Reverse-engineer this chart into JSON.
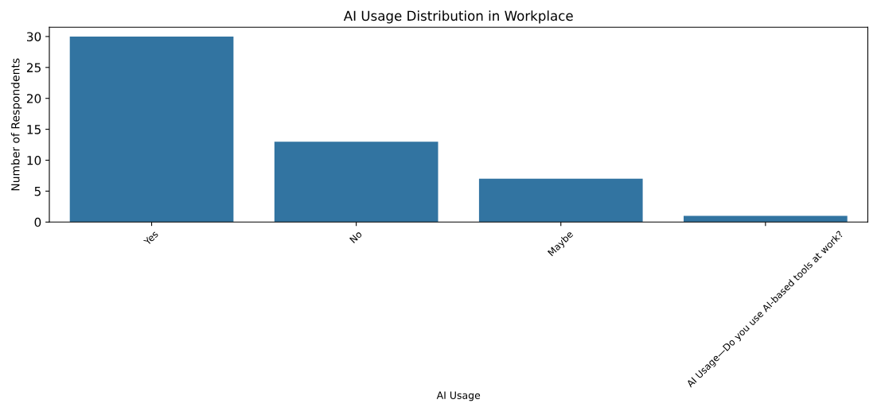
{
  "chart_data": {
    "type": "bar",
    "title": "AI Usage Distribution in Workplace",
    "xlabel": "AI Usage",
    "ylabel": "Number of Respondents",
    "categories": [
      "Yes",
      "No",
      "Maybe",
      "AI Usage—Do you use AI-based tools at work?"
    ],
    "values": [
      30,
      13,
      7,
      1
    ],
    "color": "#3274a1",
    "ylim": [
      0,
      31.5
    ],
    "yticks": [
      0,
      5,
      10,
      15,
      20,
      25,
      30
    ],
    "grid": false,
    "legend": false
  }
}
